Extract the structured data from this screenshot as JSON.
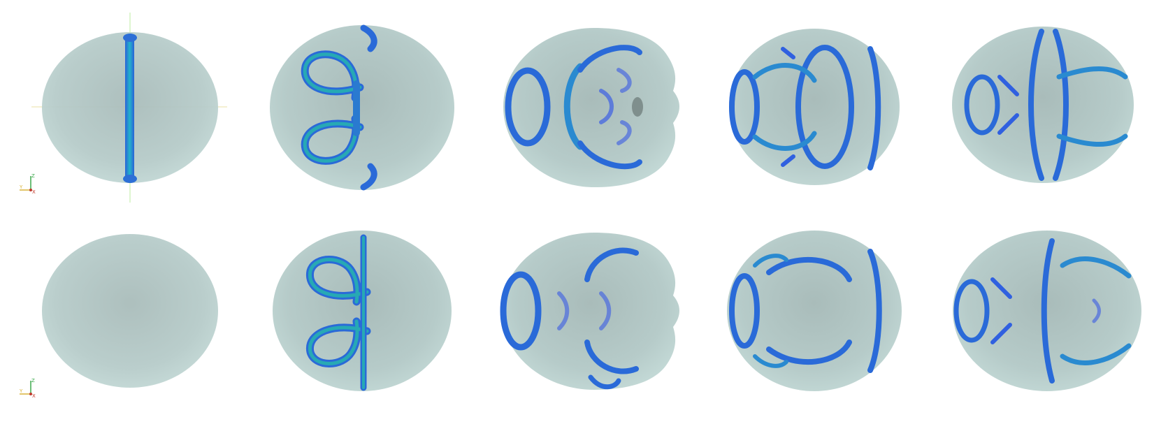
{
  "figure": {
    "rows": 2,
    "columns": 5,
    "orientation_triad": {
      "vertical_axis_label": "Z",
      "horizontal_axis_label": "Y",
      "out_of_plane_label": "X"
    },
    "colors": {
      "shell_fill": "#b9cfcd",
      "shell_shadow": "#9fb5b3",
      "tube_blue": "#2f6fe0",
      "tube_cyan": "#29b6d6",
      "tube_core": "#1b9ea0",
      "crosshair": "#c9f0b0",
      "triad_z": "#3aa84a",
      "triad_y": "#d8b23a",
      "triad_x": "#c0392b"
    }
  }
}
